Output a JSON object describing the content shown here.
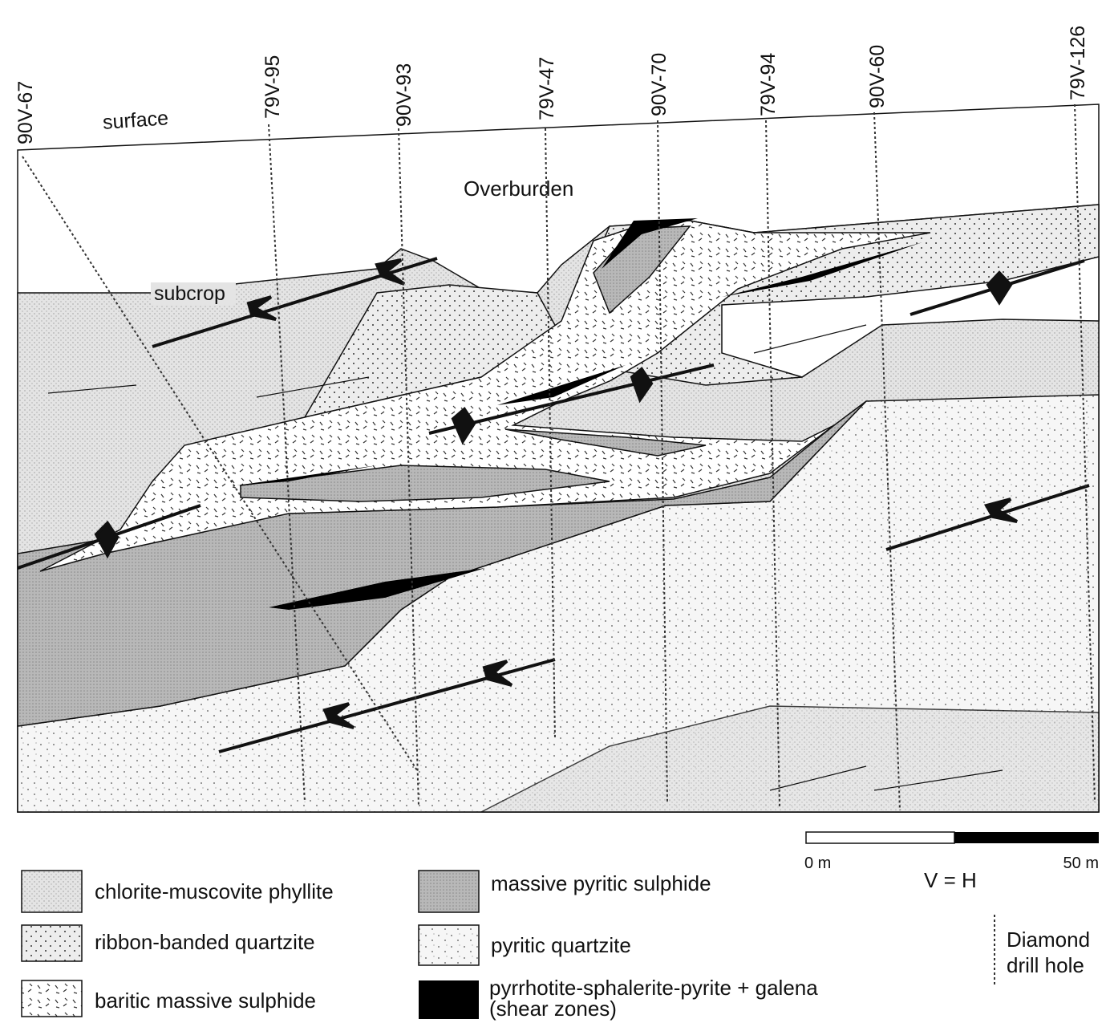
{
  "section": {
    "drill_holes": [
      "90V-67",
      "79V-95",
      "90V-93",
      "79V-47",
      "90V-70",
      "79V-94",
      "90V-60",
      "79V-126"
    ],
    "surface": "surface",
    "overburden": "Overburden",
    "subcrop": "subcrop"
  },
  "scale": {
    "start": "0 m",
    "end": "50 m",
    "ratio": "V = H"
  },
  "legend": {
    "items": [
      {
        "label": [
          "chlorite-muscovite phyllite"
        ]
      },
      {
        "label": [
          "ribbon-banded quartzite"
        ]
      },
      {
        "label": [
          "baritic massive sulphide"
        ]
      },
      {
        "label": [
          "massive pyritic sulphide"
        ]
      },
      {
        "label": [
          "pyritic quartzite"
        ]
      },
      {
        "label": [
          "pyrrhotite-sphalerite-pyrite + galena",
          "(shear zones)"
        ]
      }
    ],
    "drill_hole": [
      "Diamond",
      "drill hole"
    ]
  }
}
